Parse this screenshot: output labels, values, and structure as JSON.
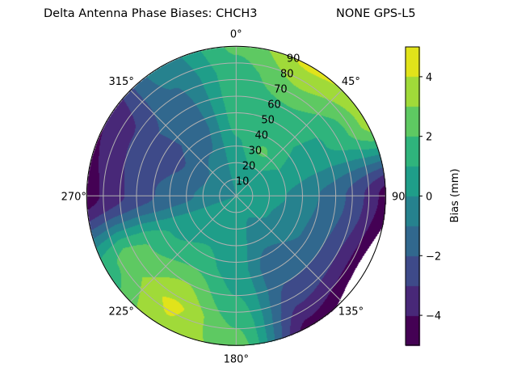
{
  "chart_data": {
    "type": "heatmap",
    "projection": "polar",
    "title": "Delta Antenna Phase Biases: CHCH3",
    "title_right": "NONE GPS-L5",
    "theta_direction": "clockwise",
    "theta_zero": "top",
    "theta_tick_labels": [
      "0°",
      "45°",
      "90",
      "135°",
      "180°",
      "225°",
      "270°",
      "315°"
    ],
    "r_tick_labels": [
      "10",
      "20",
      "30",
      "40",
      "50",
      "60",
      "70",
      "80",
      "90"
    ],
    "r_range": [
      0,
      90
    ],
    "grid": true,
    "colorbar": {
      "label": "Bias (mm)",
      "range": [
        -5,
        5
      ],
      "levels": [
        -5,
        -4,
        -3,
        -2,
        -1,
        0,
        1,
        2,
        3,
        4,
        5
      ],
      "tick_labels": [
        "−4",
        "−2",
        "0",
        "2",
        "4"
      ],
      "ticks": [
        -4,
        -2,
        0,
        2,
        4
      ],
      "colors": [
        "#440154",
        "#482878",
        "#3e4a89",
        "#31688e",
        "#26828e",
        "#1f9e89",
        "#2fb47c",
        "#5ec962",
        "#a0da39",
        "#e1e31a"
      ]
    },
    "azimuth": [
      0,
      30,
      60,
      90,
      120,
      150,
      180,
      210,
      240,
      270,
      300,
      330
    ],
    "zenith": [
      0,
      15,
      30,
      45,
      60,
      75,
      90
    ],
    "values": [
      [
        0,
        0.3,
        0.8,
        1.3,
        1.5,
        1.6,
        2.2
      ],
      [
        0,
        0.5,
        2.2,
        1.5,
        1.8,
        3.0,
        4.3
      ],
      [
        0,
        0.5,
        1.0,
        0.8,
        0.9,
        1.8,
        3.5
      ],
      [
        0,
        0.2,
        0,
        -0.8,
        -1.5,
        -2.8,
        -4.5
      ],
      [
        0,
        0.2,
        -0.2,
        -1.0,
        -2.0,
        -3.5,
        -6
      ],
      [
        0,
        0,
        -0.5,
        -1.8,
        -2.0,
        -3.0,
        -4.5
      ],
      [
        0,
        0.2,
        0.3,
        0.5,
        1.0,
        1.8,
        2.5
      ],
      [
        0,
        0.3,
        0.8,
        1.5,
        3.0,
        4.2,
        3.8
      ],
      [
        0,
        0.2,
        0.5,
        1.0,
        2.0,
        2.5,
        1.5
      ],
      [
        0,
        -0.5,
        -1.2,
        -1.8,
        -2.5,
        -3.5,
        -4.5
      ],
      [
        0,
        -0.6,
        -1.8,
        -2.3,
        -2.2,
        -3.2,
        -4.0
      ],
      [
        0,
        -0.3,
        -1.0,
        -1.5,
        -1.3,
        -1.0,
        -0.5
      ]
    ]
  }
}
